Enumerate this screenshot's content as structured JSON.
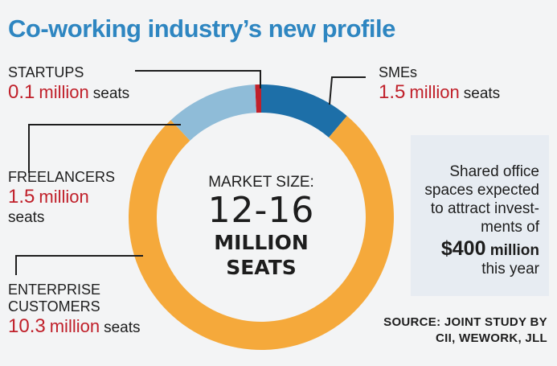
{
  "title": "Co-working industry’s new profile",
  "center": {
    "line1": "MARKET SIZE:",
    "line2": "12-16",
    "line3": "MILLION",
    "line4": "SEATS"
  },
  "labels": {
    "startups": {
      "name": "STARTUPS",
      "value": "0.1",
      "unit_line": "million seats"
    },
    "smes": {
      "name": "SMEs",
      "value": "1.5",
      "unit_line": "million seats"
    },
    "freelancers": {
      "name": "FREELANCERS",
      "value": "1.5",
      "million": "million",
      "seats": "seats"
    },
    "enterprise": {
      "name1": "ENTERPRISE",
      "name2": "CUSTOMERS",
      "value": "10.3",
      "unit_line": "million seats"
    }
  },
  "callout": {
    "line1": "Shared office",
    "line2": "spaces expected",
    "line3": "to attract invest-",
    "line4": "ments of",
    "amount": "$400",
    "amount_unit": "million",
    "line6": "this year"
  },
  "source": {
    "line1": "SOURCE: JOINT STUDY BY",
    "line2": "CII, WEWORK, JLL"
  },
  "colors": {
    "title": "#2e86c1",
    "startups": "#c0202a",
    "smes": "#1d6fa8",
    "freelancers": "#8fbcd8",
    "enterprise": "#f5a93b",
    "value_text": "#c0202a"
  },
  "chart_data": {
    "type": "pie",
    "donut": true,
    "title": "Co-working industry’s new profile",
    "categories": [
      "STARTUPS",
      "SMEs",
      "FREELANCERS",
      "ENTERPRISE CUSTOMERS"
    ],
    "values": [
      0.1,
      1.5,
      1.5,
      10.3
    ],
    "unit": "million seats",
    "start_angle": "top",
    "direction": "clockwise",
    "order": [
      "STARTUPS",
      "SMEs",
      "ENTERPRISE CUSTOMERS",
      "FREELANCERS"
    ]
  }
}
